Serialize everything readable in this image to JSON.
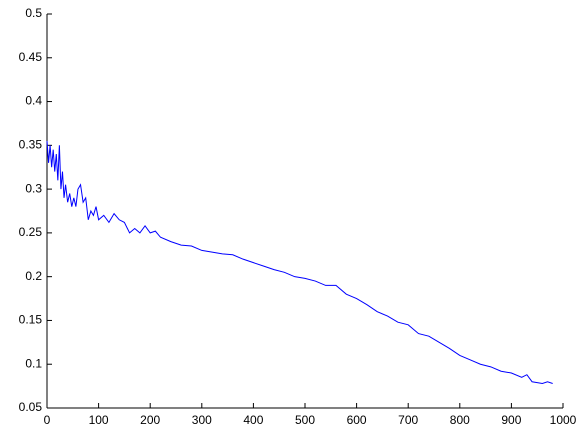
{
  "chart_data": {
    "type": "line",
    "x": [
      0,
      3,
      6,
      9,
      12,
      15,
      18,
      21,
      24,
      27,
      30,
      33,
      36,
      40,
      44,
      48,
      52,
      56,
      60,
      65,
      70,
      75,
      80,
      85,
      90,
      95,
      100,
      110,
      120,
      130,
      140,
      150,
      160,
      170,
      180,
      190,
      200,
      210,
      220,
      240,
      260,
      280,
      300,
      320,
      340,
      360,
      380,
      400,
      420,
      440,
      460,
      480,
      500,
      520,
      540,
      560,
      580,
      600,
      620,
      640,
      660,
      680,
      700,
      720,
      740,
      760,
      780,
      800,
      820,
      840,
      860,
      880,
      900,
      920,
      930,
      940,
      960,
      970,
      980
    ],
    "values": [
      0.355,
      0.33,
      0.35,
      0.325,
      0.345,
      0.32,
      0.34,
      0.31,
      0.35,
      0.3,
      0.32,
      0.29,
      0.305,
      0.285,
      0.295,
      0.28,
      0.29,
      0.28,
      0.3,
      0.305,
      0.285,
      0.29,
      0.265,
      0.275,
      0.27,
      0.28,
      0.265,
      0.27,
      0.262,
      0.272,
      0.265,
      0.262,
      0.25,
      0.255,
      0.25,
      0.258,
      0.25,
      0.252,
      0.245,
      0.24,
      0.236,
      0.235,
      0.23,
      0.228,
      0.226,
      0.225,
      0.22,
      0.216,
      0.212,
      0.208,
      0.205,
      0.2,
      0.198,
      0.195,
      0.19,
      0.19,
      0.18,
      0.175,
      0.168,
      0.16,
      0.155,
      0.148,
      0.145,
      0.135,
      0.132,
      0.125,
      0.118,
      0.11,
      0.105,
      0.1,
      0.097,
      0.092,
      0.09,
      0.085,
      0.088,
      0.08,
      0.078,
      0.08,
      0.078
    ],
    "color": "#0000ff",
    "xlim": [
      0,
      1000
    ],
    "xticks": [
      0,
      100,
      200,
      300,
      400,
      500,
      600,
      700,
      800,
      900,
      1000
    ],
    "ylim": [
      0.05,
      0.5
    ],
    "yticks": [
      0.05,
      0.1,
      0.15,
      0.2,
      0.25,
      0.3,
      0.35,
      0.4,
      0.45,
      0.5
    ]
  }
}
